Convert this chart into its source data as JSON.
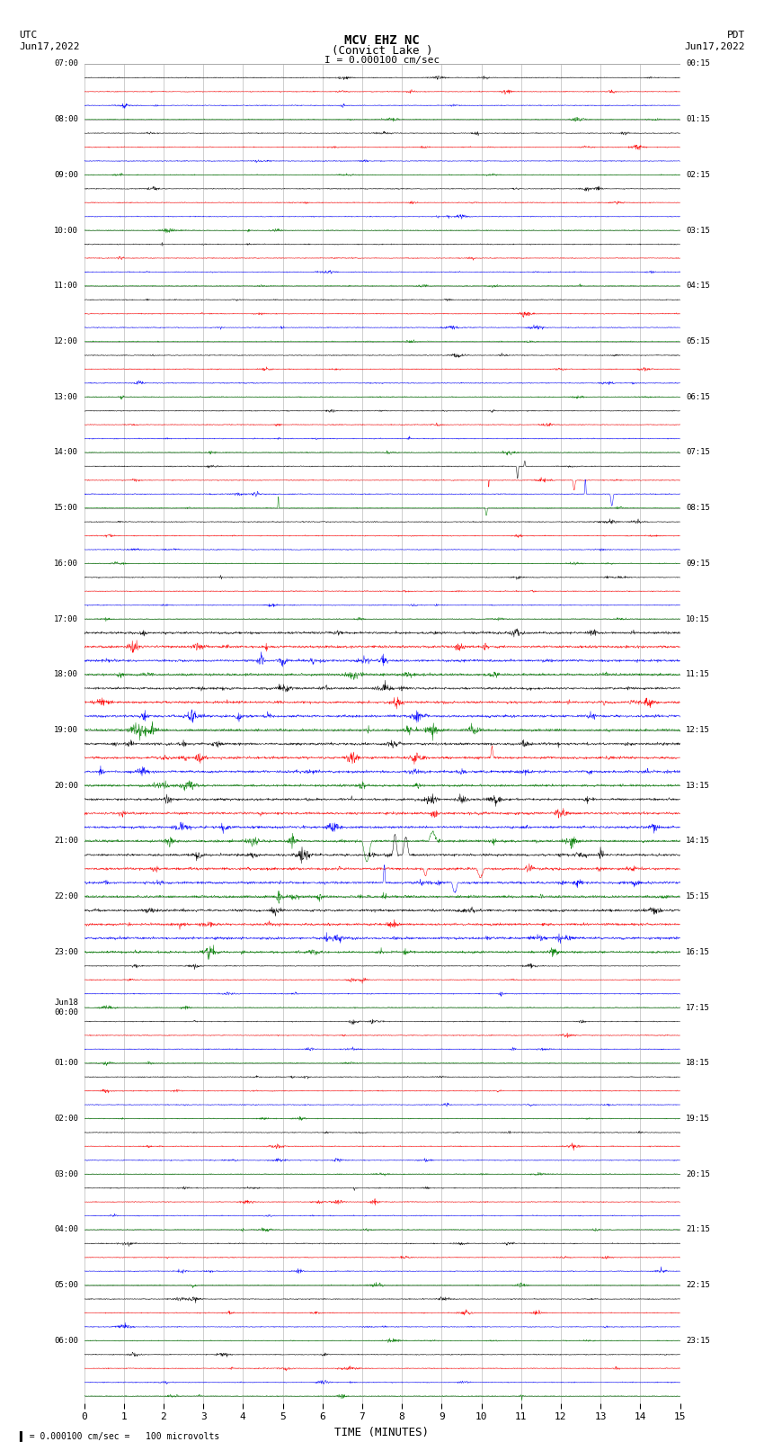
{
  "title_line1": "MCV EHZ NC",
  "title_line2": "(Convict Lake )",
  "title_line3": "I = 0.000100 cm/sec",
  "left_header": "UTC",
  "left_date": "Jun17,2022",
  "right_header": "PDT",
  "right_date": "Jun17,2022",
  "xlabel": "TIME (MINUTES)",
  "footnote": "= 0.000100 cm/sec =   100 microvolts",
  "xlim": [
    0,
    15
  ],
  "xticks": [
    0,
    1,
    2,
    3,
    4,
    5,
    6,
    7,
    8,
    9,
    10,
    11,
    12,
    13,
    14,
    15
  ],
  "background_color": "#ffffff",
  "trace_colors": [
    "black",
    "red",
    "blue",
    "green"
  ],
  "num_rows": 96,
  "left_labels_sparse": {
    "0": "07:00",
    "4": "08:00",
    "8": "09:00",
    "12": "10:00",
    "16": "11:00",
    "20": "12:00",
    "24": "13:00",
    "28": "14:00",
    "32": "15:00",
    "36": "16:00",
    "40": "17:00",
    "44": "18:00",
    "48": "19:00",
    "52": "20:00",
    "56": "21:00",
    "60": "22:00",
    "64": "23:00",
    "68": "Jun18\n00:00",
    "72": "01:00",
    "76": "02:00",
    "80": "03:00",
    "84": "04:00",
    "88": "05:00",
    "92": "06:00"
  },
  "right_labels_sparse": {
    "0": "00:15",
    "4": "01:15",
    "8": "02:15",
    "12": "03:15",
    "16": "04:15",
    "20": "05:15",
    "24": "06:15",
    "28": "07:15",
    "32": "08:15",
    "36": "09:15",
    "40": "10:15",
    "44": "11:15",
    "48": "12:15",
    "52": "13:15",
    "56": "14:15",
    "60": "15:15",
    "64": "16:15",
    "68": "17:15",
    "72": "18:15",
    "76": "19:15",
    "80": "20:15",
    "84": "21:15",
    "88": "22:15",
    "92": "23:15"
  },
  "high_activity_rows": [
    40,
    41,
    42,
    43,
    44,
    45,
    46,
    47,
    48,
    49,
    50,
    51,
    52,
    53,
    54,
    55,
    56,
    57,
    58,
    59,
    60,
    61,
    62,
    63
  ],
  "big_spike_rows": [
    28,
    29,
    30,
    31
  ],
  "red_spike_row": 49,
  "green_spike_rows": [
    55,
    56,
    57,
    58
  ]
}
